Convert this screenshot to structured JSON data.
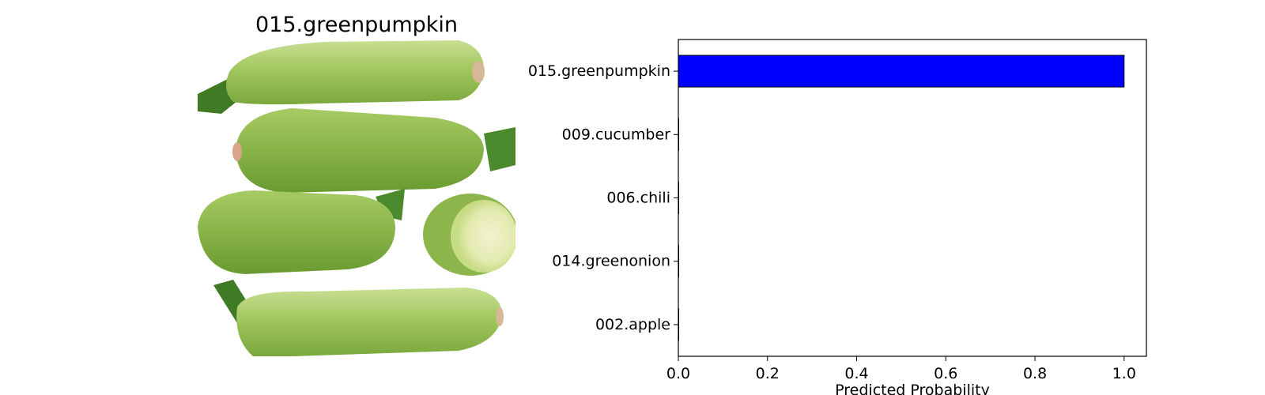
{
  "image_title": "015.greenpumpkin",
  "chart_data": {
    "type": "bar",
    "orientation": "horizontal",
    "categories": [
      "015.greenpumpkin",
      "009.cucumber",
      "006.chili",
      "014.greenonion",
      "002.apple"
    ],
    "values": [
      1.0,
      0.0005,
      0.0003,
      0.0002,
      0.0001
    ],
    "xlabel": "Predicted Probability",
    "ylabel": "",
    "xlim": [
      0.0,
      1.05
    ],
    "xticks": [
      "0.0",
      "0.2",
      "0.4",
      "0.6",
      "0.8",
      "1.0"
    ],
    "grid": false,
    "colors": {
      "bar": "#0000ff",
      "edge": "#000000"
    }
  }
}
